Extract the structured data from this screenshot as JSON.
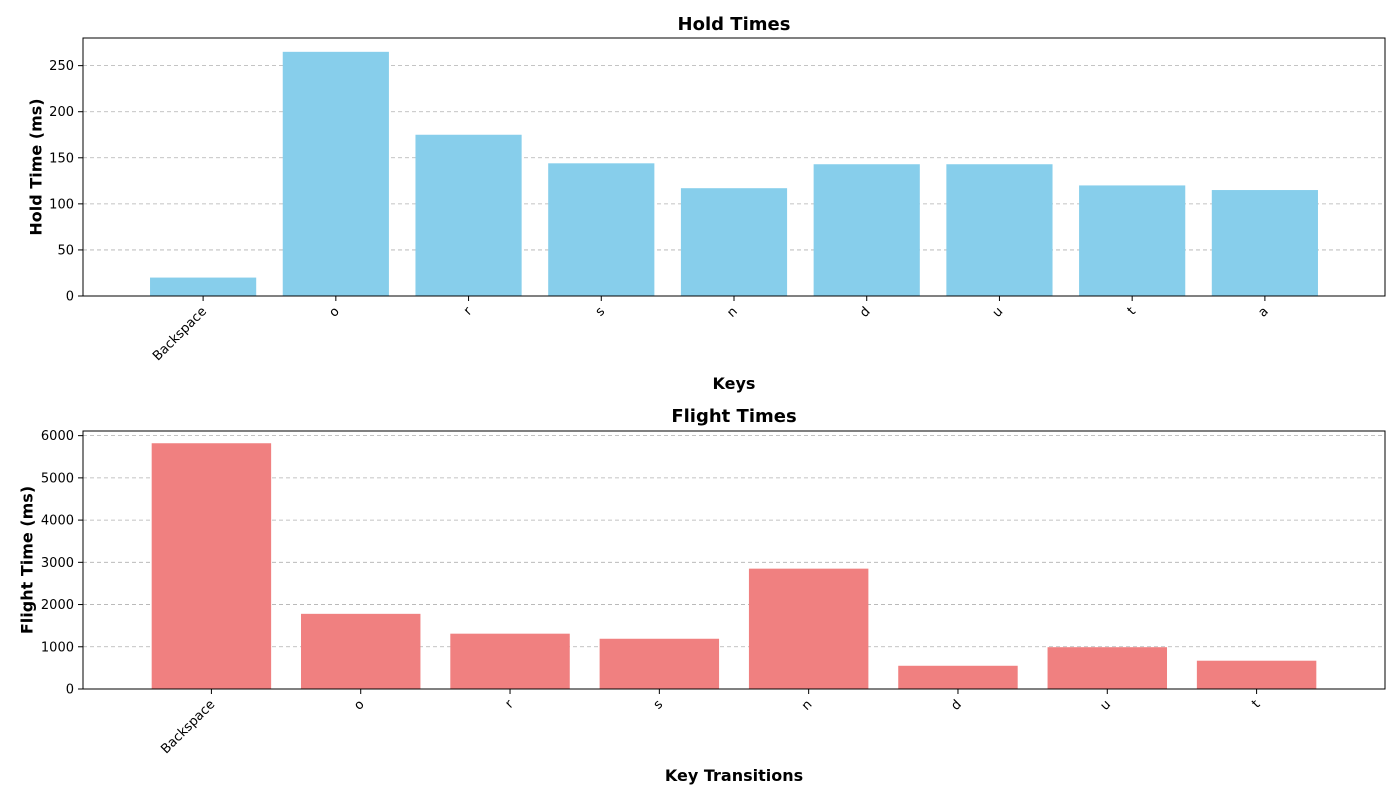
{
  "chart_data": [
    {
      "type": "bar",
      "title": "Hold Times",
      "xlabel": "Keys",
      "ylabel": "Hold Time (ms)",
      "categories": [
        "Backspace",
        "o",
        "r",
        "s",
        "n",
        "d",
        "u",
        "t",
        "a"
      ],
      "values": [
        20,
        265,
        175,
        144,
        117,
        143,
        143,
        120,
        115
      ],
      "ylim": [
        0,
        280
      ],
      "yticks": [
        0,
        50,
        100,
        150,
        200,
        250
      ],
      "color": "#87ceeb",
      "grid": "y-dashed"
    },
    {
      "type": "bar",
      "title": "Flight Times",
      "xlabel": "Key Transitions",
      "ylabel": "Flight Time (ms)",
      "categories": [
        "Backspace",
        "o",
        "r",
        "s",
        "n",
        "d",
        "u",
        "t"
      ],
      "values": [
        5820,
        1780,
        1310,
        1190,
        2850,
        550,
        990,
        670
      ],
      "ylim": [
        0,
        6110
      ],
      "yticks": [
        0,
        1000,
        2000,
        3000,
        4000,
        5000,
        6000
      ],
      "color": "#f08080",
      "grid": "y-dashed"
    }
  ]
}
